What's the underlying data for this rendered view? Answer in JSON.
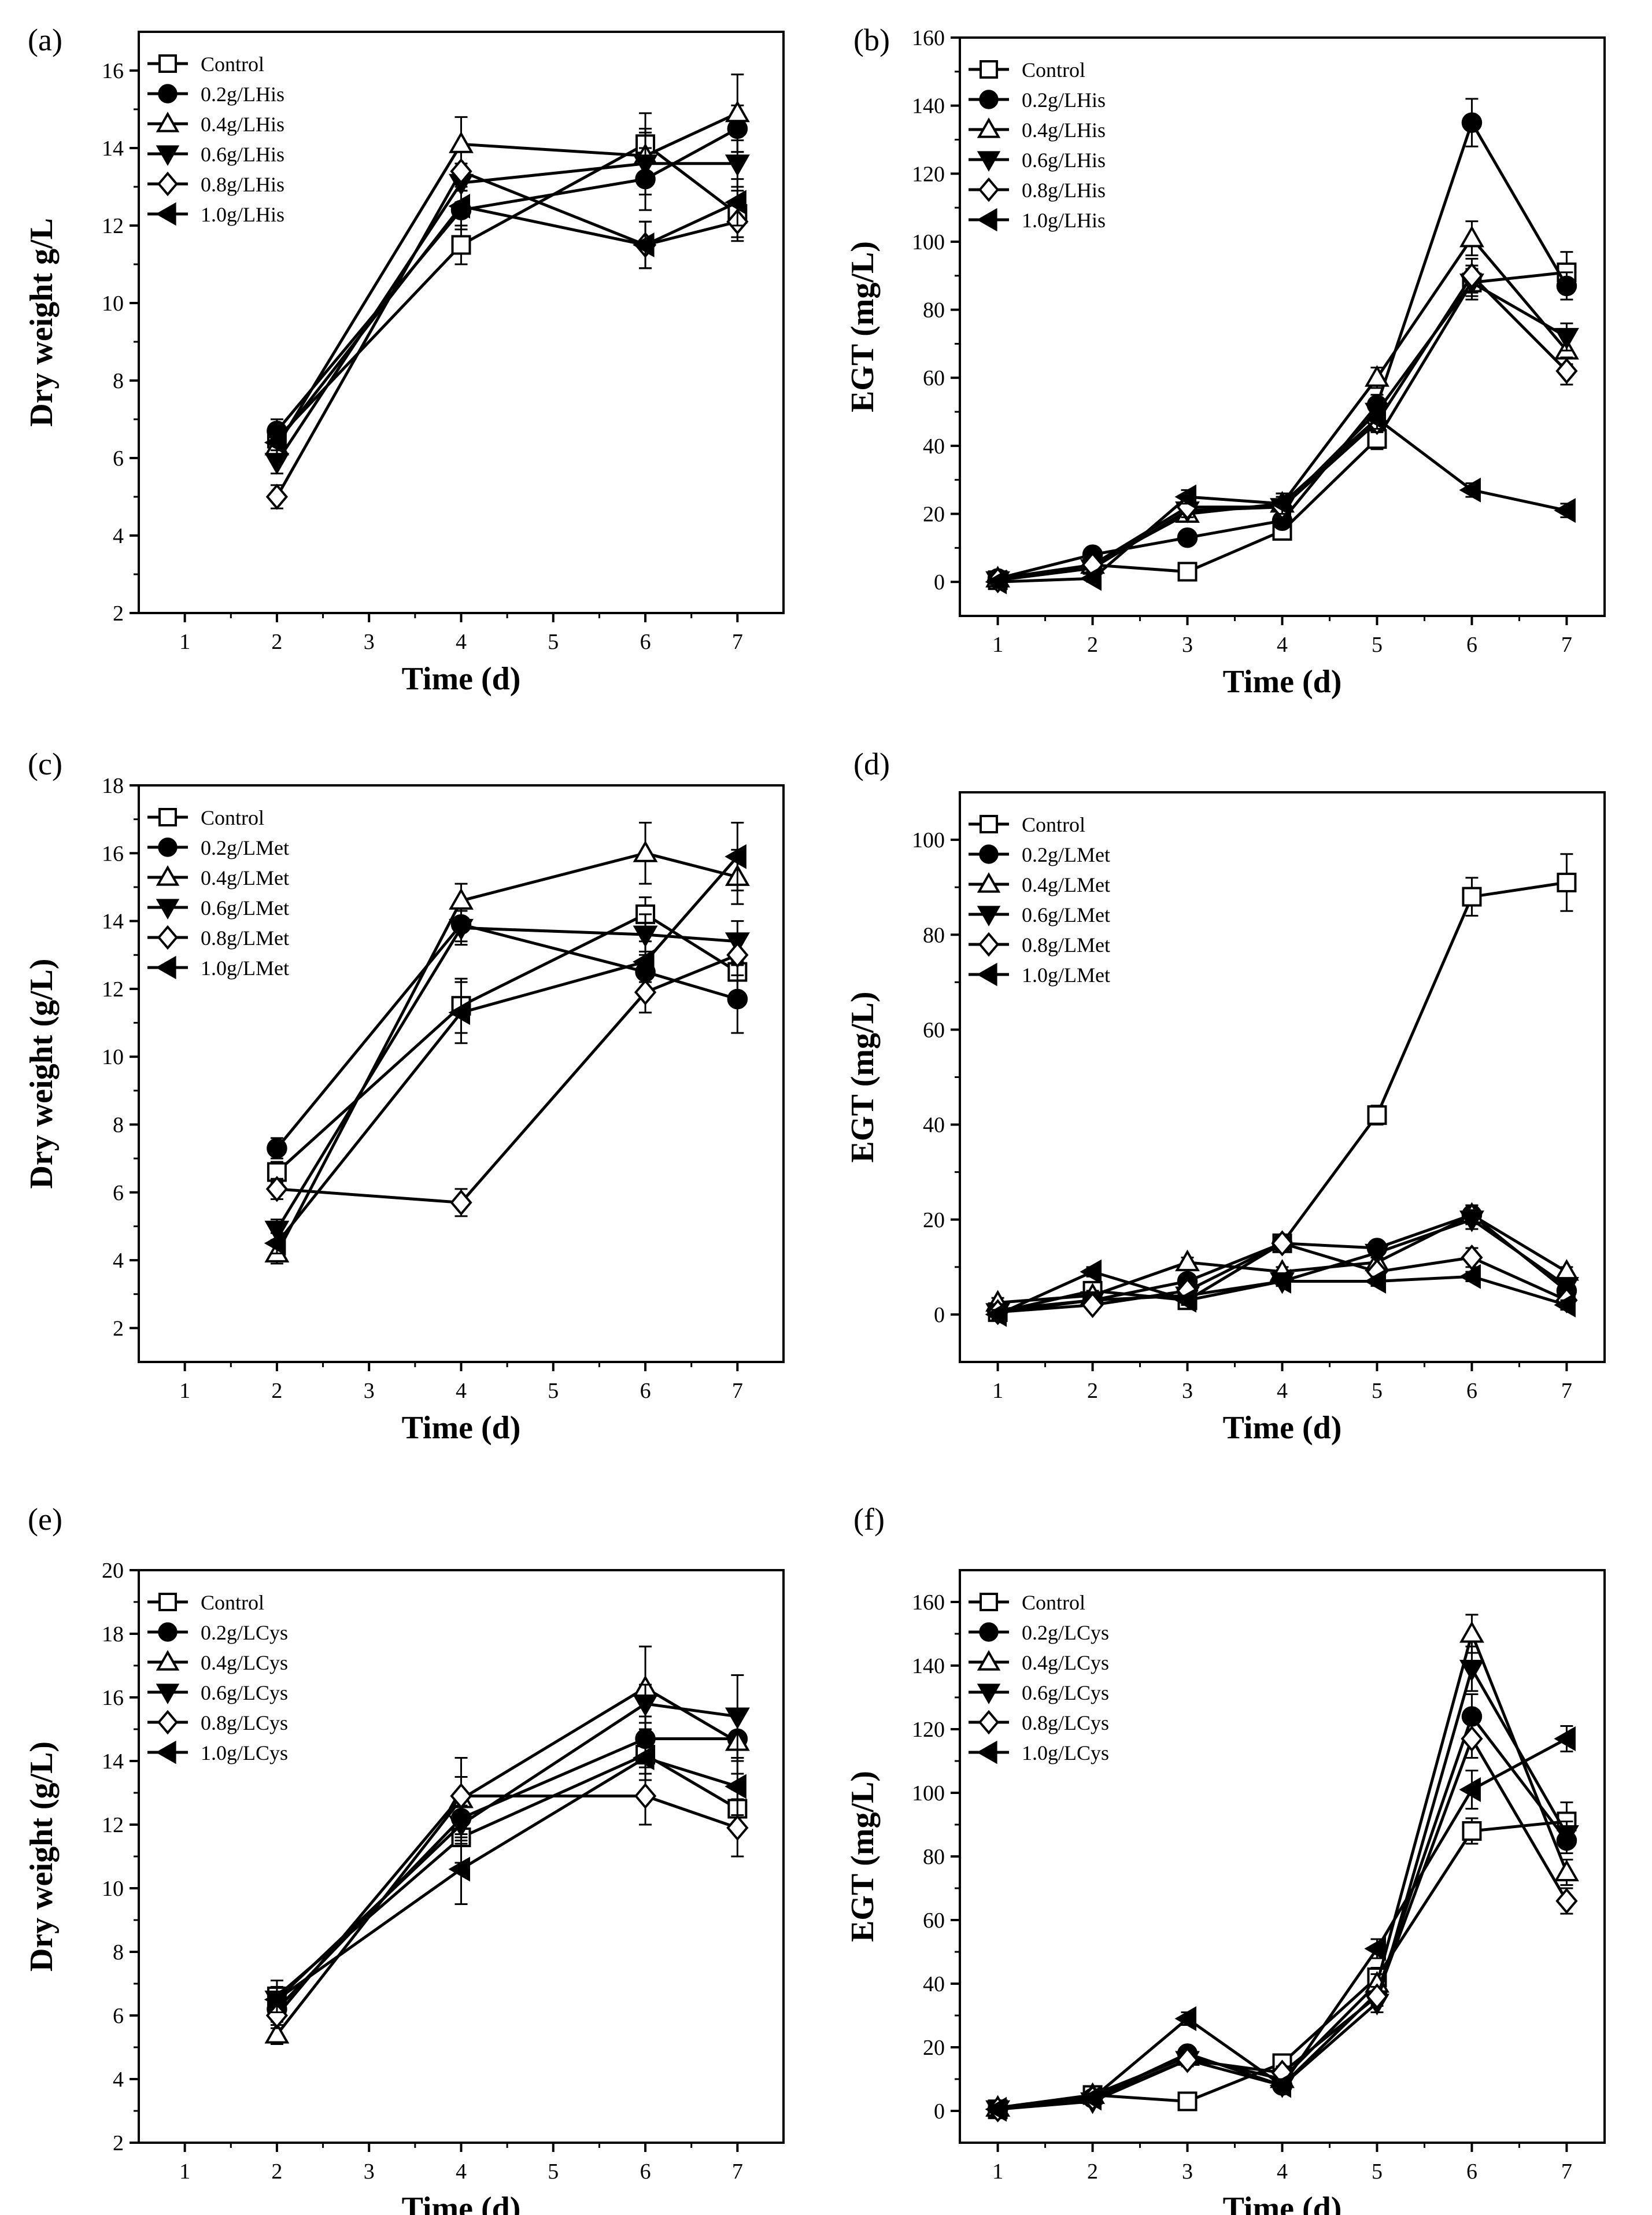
{
  "chart_data": [
    {
      "id": "a",
      "type": "line",
      "panel_label": "(a)",
      "xlabel": "Time (d)",
      "ylabel": "Dry weight  g/L",
      "xlim": [
        0.5,
        7.5
      ],
      "ylim": [
        2,
        17
      ],
      "xticks": [
        1,
        2,
        3,
        4,
        5,
        6,
        7
      ],
      "yticks": [
        2,
        4,
        6,
        8,
        10,
        12,
        14,
        16
      ],
      "legend_position": "top-left",
      "series": [
        {
          "name": "Control",
          "marker": "square-open",
          "x": [
            2,
            4,
            6,
            7
          ],
          "y": [
            6.5,
            11.5,
            14.1,
            12.3
          ],
          "err": [
            0.3,
            0.5,
            0.8,
            0.6
          ]
        },
        {
          "name": "0.2g/LHis",
          "marker": "circle-filled",
          "x": [
            2,
            4,
            6,
            7
          ],
          "y": [
            6.7,
            12.4,
            13.2,
            14.5
          ],
          "err": [
            0.3,
            0.5,
            0.8,
            0.6
          ]
        },
        {
          "name": "0.4g/LHis",
          "marker": "triangle-up-open",
          "x": [
            2,
            4,
            6,
            7
          ],
          "y": [
            6.3,
            14.1,
            13.8,
            14.9
          ],
          "err": [
            0.3,
            0.7,
            0.7,
            1.0
          ]
        },
        {
          "name": "0.6g/LHis",
          "marker": "triangle-down-filled",
          "x": [
            2,
            4,
            6,
            7
          ],
          "y": [
            5.9,
            13.1,
            13.6,
            13.6
          ],
          "err": [
            0.3,
            0.5,
            0.8,
            0.6
          ]
        },
        {
          "name": "0.8g/LHis",
          "marker": "diamond-open",
          "x": [
            2,
            4,
            6,
            7
          ],
          "y": [
            5.0,
            13.4,
            11.5,
            12.1
          ],
          "err": [
            0.3,
            0.5,
            0.6,
            0.5
          ]
        },
        {
          "name": "1.0g/LHis",
          "marker": "triangle-left-filled",
          "x": [
            2,
            4,
            6,
            7
          ],
          "y": [
            6.4,
            12.5,
            11.5,
            12.6
          ],
          "err": [
            0.3,
            0.5,
            0.6,
            0.6
          ]
        }
      ]
    },
    {
      "id": "b",
      "type": "line",
      "panel_label": "(b)",
      "xlabel": "Time (d)",
      "ylabel": "EGT (mg/L)",
      "xlim": [
        0.6,
        7.4
      ],
      "ylim": [
        -10,
        160
      ],
      "xticks": [
        1,
        2,
        3,
        4,
        5,
        6,
        7
      ],
      "yticks": [
        0,
        20,
        40,
        60,
        80,
        100,
        120,
        140,
        160
      ],
      "legend_position": "top-left",
      "series": [
        {
          "name": "Control",
          "marker": "square-open",
          "x": [
            1,
            2,
            3,
            4,
            5,
            6,
            7
          ],
          "y": [
            0.5,
            5,
            3,
            15,
            42,
            88,
            91
          ],
          "err": [
            1,
            1,
            1,
            2,
            3,
            4,
            6
          ]
        },
        {
          "name": "0.2g/LHis",
          "marker": "circle-filled",
          "x": [
            1,
            2,
            3,
            4,
            5,
            6,
            7
          ],
          "y": [
            1,
            8,
            13,
            18,
            52,
            135,
            87
          ],
          "err": [
            1,
            1,
            1,
            2,
            3,
            7,
            4
          ]
        },
        {
          "name": "0.4g/LHis",
          "marker": "triangle-up-open",
          "x": [
            1,
            2,
            3,
            4,
            5,
            6,
            7
          ],
          "y": [
            1,
            5,
            20,
            23,
            60,
            101,
            68
          ],
          "err": [
            1,
            1,
            2,
            3,
            3,
            5,
            4
          ]
        },
        {
          "name": "0.6g/LHis",
          "marker": "triangle-down-filled",
          "x": [
            1,
            2,
            3,
            4,
            5,
            6,
            7
          ],
          "y": [
            0.5,
            4,
            21,
            22,
            50,
            88,
            72
          ],
          "err": [
            1,
            1,
            2,
            3,
            3,
            5,
            4
          ]
        },
        {
          "name": "0.8g/LHis",
          "marker": "diamond-open",
          "x": [
            1,
            2,
            3,
            4,
            5,
            6,
            7
          ],
          "y": [
            0.5,
            5,
            22,
            22,
            47,
            90,
            62
          ],
          "err": [
            1,
            1,
            2,
            3,
            3,
            5,
            4
          ]
        },
        {
          "name": "1.0g/LHis",
          "marker": "triangle-left-filled",
          "x": [
            1,
            2,
            3,
            4,
            5,
            6,
            7
          ],
          "y": [
            0,
            1,
            25,
            23,
            48,
            27,
            21
          ],
          "err": [
            1,
            1,
            2,
            3,
            3,
            2,
            2
          ]
        }
      ]
    },
    {
      "id": "c",
      "type": "line",
      "panel_label": "(c)",
      "xlabel": "Time (d)",
      "ylabel": "Dry weight (g/L)",
      "xlim": [
        0.5,
        7.5
      ],
      "ylim": [
        1,
        18
      ],
      "xticks": [
        1,
        2,
        3,
        4,
        5,
        6,
        7
      ],
      "yticks": [
        2,
        4,
        6,
        8,
        10,
        12,
        14,
        16,
        18
      ],
      "legend_position": "top-left",
      "series": [
        {
          "name": "Control",
          "marker": "square-open",
          "x": [
            2,
            4,
            6,
            7
          ],
          "y": [
            6.6,
            11.5,
            14.2,
            12.5
          ],
          "err": [
            0.3,
            0.8,
            0.5,
            0.6
          ]
        },
        {
          "name": "0.2g/LMet",
          "marker": "circle-filled",
          "x": [
            2,
            4,
            6,
            7
          ],
          "y": [
            7.3,
            13.9,
            12.5,
            11.7
          ],
          "err": [
            0.3,
            0.5,
            0.6,
            1.0
          ]
        },
        {
          "name": "0.4g/LMet",
          "marker": "triangle-up-open",
          "x": [
            2,
            4,
            6,
            7
          ],
          "y": [
            4.2,
            14.6,
            16.0,
            15.3
          ],
          "err": [
            0.3,
            0.5,
            0.9,
            0.8
          ]
        },
        {
          "name": "0.6g/LMet",
          "marker": "triangle-down-filled",
          "x": [
            2,
            4,
            6,
            7
          ],
          "y": [
            4.9,
            13.8,
            13.6,
            13.4
          ],
          "err": [
            0.3,
            0.5,
            0.6,
            0.6
          ]
        },
        {
          "name": "0.8g/LMet",
          "marker": "diamond-open",
          "x": [
            2,
            4,
            6,
            7
          ],
          "y": [
            6.1,
            5.7,
            11.9,
            13.0
          ],
          "err": [
            0.3,
            0.4,
            0.6,
            0.6
          ]
        },
        {
          "name": "1.0g/LMet",
          "marker": "triangle-left-filled",
          "x": [
            2,
            4,
            6,
            7
          ],
          "y": [
            4.5,
            11.3,
            12.8,
            15.9
          ],
          "err": [
            0.3,
            0.9,
            0.6,
            1.0
          ]
        }
      ]
    },
    {
      "id": "d",
      "type": "line",
      "panel_label": "(d)",
      "xlabel": "Time (d)",
      "ylabel": "EGT (mg/L)",
      "xlim": [
        0.6,
        7.4
      ],
      "ylim": [
        -10,
        110
      ],
      "xticks": [
        1,
        2,
        3,
        4,
        5,
        6,
        7
      ],
      "yticks": [
        0,
        20,
        40,
        60,
        80,
        100
      ],
      "legend_position": "top-left",
      "series": [
        {
          "name": "Control",
          "marker": "square-open",
          "x": [
            1,
            2,
            3,
            4,
            5,
            6,
            7
          ],
          "y": [
            0.5,
            5,
            3,
            15,
            42,
            88,
            91
          ],
          "err": [
            1,
            1,
            1,
            1,
            2,
            4,
            6
          ]
        },
        {
          "name": "0.2g/LMet",
          "marker": "circle-filled",
          "x": [
            1,
            2,
            3,
            4,
            5,
            6,
            7
          ],
          "y": [
            1,
            3,
            7,
            15,
            14,
            21,
            5
          ],
          "err": [
            1,
            1,
            1,
            1,
            1,
            2,
            1
          ]
        },
        {
          "name": "0.4g/LMet",
          "marker": "triangle-up-open",
          "x": [
            1,
            2,
            3,
            4,
            5,
            6,
            7
          ],
          "y": [
            2.5,
            4,
            11,
            9,
            11,
            21,
            9
          ],
          "err": [
            1,
            1,
            1,
            1,
            1,
            2,
            1
          ]
        },
        {
          "name": "0.6g/LMet",
          "marker": "triangle-down-filled",
          "x": [
            1,
            2,
            3,
            4,
            5,
            6,
            7
          ],
          "y": [
            0.5,
            3,
            4,
            7,
            13,
            20,
            6
          ],
          "err": [
            1,
            1,
            1,
            1,
            1,
            2,
            1
          ]
        },
        {
          "name": "0.8g/LMet",
          "marker": "diamond-open",
          "x": [
            1,
            2,
            3,
            4,
            5,
            6,
            7
          ],
          "y": [
            0.5,
            2,
            5,
            15,
            9,
            12,
            3
          ],
          "err": [
            1,
            1,
            1,
            1,
            1,
            2,
            1
          ]
        },
        {
          "name": "1.0g/LMet",
          "marker": "triangle-left-filled",
          "x": [
            1,
            2,
            3,
            4,
            5,
            6,
            7
          ],
          "y": [
            0,
            9,
            3,
            7,
            7,
            8,
            2
          ],
          "err": [
            1,
            1,
            1,
            1,
            1,
            1,
            1
          ]
        }
      ]
    },
    {
      "id": "e",
      "type": "line",
      "panel_label": "(e)",
      "xlabel": "Time (d)",
      "ylabel": "Dry weight (g/L)",
      "xlim": [
        0.5,
        7.5
      ],
      "ylim": [
        2,
        20
      ],
      "xticks": [
        1,
        2,
        3,
        4,
        5,
        6,
        7
      ],
      "yticks": [
        2,
        4,
        6,
        8,
        10,
        12,
        14,
        16,
        18,
        20
      ],
      "legend_position": "top-left",
      "series": [
        {
          "name": "Control",
          "marker": "square-open",
          "x": [
            2,
            4,
            6,
            7
          ],
          "y": [
            6.6,
            11.6,
            14.2,
            12.5
          ],
          "err": [
            0.5,
            0.8,
            0.6,
            0.6
          ]
        },
        {
          "name": "0.2g/LCys",
          "marker": "circle-filled",
          "x": [
            2,
            4,
            6,
            7
          ],
          "y": [
            6.2,
            12.2,
            14.7,
            14.7
          ],
          "err": [
            0.4,
            0.6,
            0.7,
            0.7
          ]
        },
        {
          "name": "0.4g/LCys",
          "marker": "triangle-up-open",
          "x": [
            2,
            4,
            6,
            7
          ],
          "y": [
            5.4,
            12.8,
            16.3,
            14.6
          ],
          "err": [
            0.3,
            1.3,
            1.3,
            1.0
          ]
        },
        {
          "name": "0.6g/LCys",
          "marker": "triangle-down-filled",
          "x": [
            2,
            4,
            6,
            7
          ],
          "y": [
            6.5,
            12.0,
            15.8,
            15.4
          ],
          "err": [
            0.4,
            0.6,
            0.6,
            1.3
          ]
        },
        {
          "name": "0.8g/LCys",
          "marker": "diamond-open",
          "x": [
            2,
            4,
            6,
            7
          ],
          "y": [
            6.0,
            12.9,
            12.9,
            11.9
          ],
          "err": [
            0.4,
            0.6,
            0.9,
            0.9
          ]
        },
        {
          "name": "1.0g/LCys",
          "marker": "triangle-left-filled",
          "x": [
            2,
            4,
            6,
            7
          ],
          "y": [
            6.5,
            10.6,
            14.1,
            13.2
          ],
          "err": [
            0.4,
            1.1,
            0.7,
            0.9
          ]
        }
      ]
    },
    {
      "id": "f",
      "type": "line",
      "panel_label": "(f)",
      "xlabel": "Time (d)",
      "ylabel": "EGT (mg/L)",
      "xlim": [
        0.6,
        7.4
      ],
      "ylim": [
        -10,
        170
      ],
      "xticks": [
        1,
        2,
        3,
        4,
        5,
        6,
        7
      ],
      "yticks": [
        0,
        20,
        40,
        60,
        80,
        100,
        120,
        140,
        160
      ],
      "legend_position": "top-left",
      "series": [
        {
          "name": "Control",
          "marker": "square-open",
          "x": [
            1,
            2,
            3,
            4,
            5,
            6,
            7
          ],
          "y": [
            0.5,
            5,
            3,
            15,
            42,
            88,
            91
          ],
          "err": [
            1,
            1,
            1,
            2,
            3,
            4,
            6
          ]
        },
        {
          "name": "0.2g/LCys",
          "marker": "circle-filled",
          "x": [
            1,
            2,
            3,
            4,
            5,
            6,
            7
          ],
          "y": [
            0.5,
            4,
            18,
            8,
            37,
            124,
            85
          ],
          "err": [
            1,
            1,
            2,
            2,
            3,
            7,
            4
          ]
        },
        {
          "name": "0.4g/LCys",
          "marker": "triangle-up-open",
          "x": [
            1,
            2,
            3,
            4,
            5,
            6,
            7
          ],
          "y": [
            1,
            5,
            17,
            10,
            40,
            150,
            75
          ],
          "err": [
            1,
            1,
            2,
            2,
            3,
            6,
            4
          ]
        },
        {
          "name": "0.6g/LCys",
          "marker": "triangle-down-filled",
          "x": [
            1,
            2,
            3,
            4,
            5,
            6,
            7
          ],
          "y": [
            0.5,
            3,
            16,
            8,
            34,
            139,
            87
          ],
          "err": [
            1,
            1,
            2,
            2,
            3,
            7,
            4
          ]
        },
        {
          "name": "0.8g/LCys",
          "marker": "diamond-open",
          "x": [
            1,
            2,
            3,
            4,
            5,
            6,
            7
          ],
          "y": [
            0.5,
            4,
            16,
            12,
            36,
            117,
            66
          ],
          "err": [
            1,
            1,
            2,
            2,
            3,
            6,
            4
          ]
        },
        {
          "name": "1.0g/LCys",
          "marker": "triangle-left-filled",
          "x": [
            1,
            2,
            3,
            4,
            5,
            6,
            7
          ],
          "y": [
            0.5,
            4,
            29,
            8,
            51,
            101,
            117
          ],
          "err": [
            1,
            1,
            2,
            2,
            3,
            6,
            4
          ]
        }
      ]
    }
  ]
}
